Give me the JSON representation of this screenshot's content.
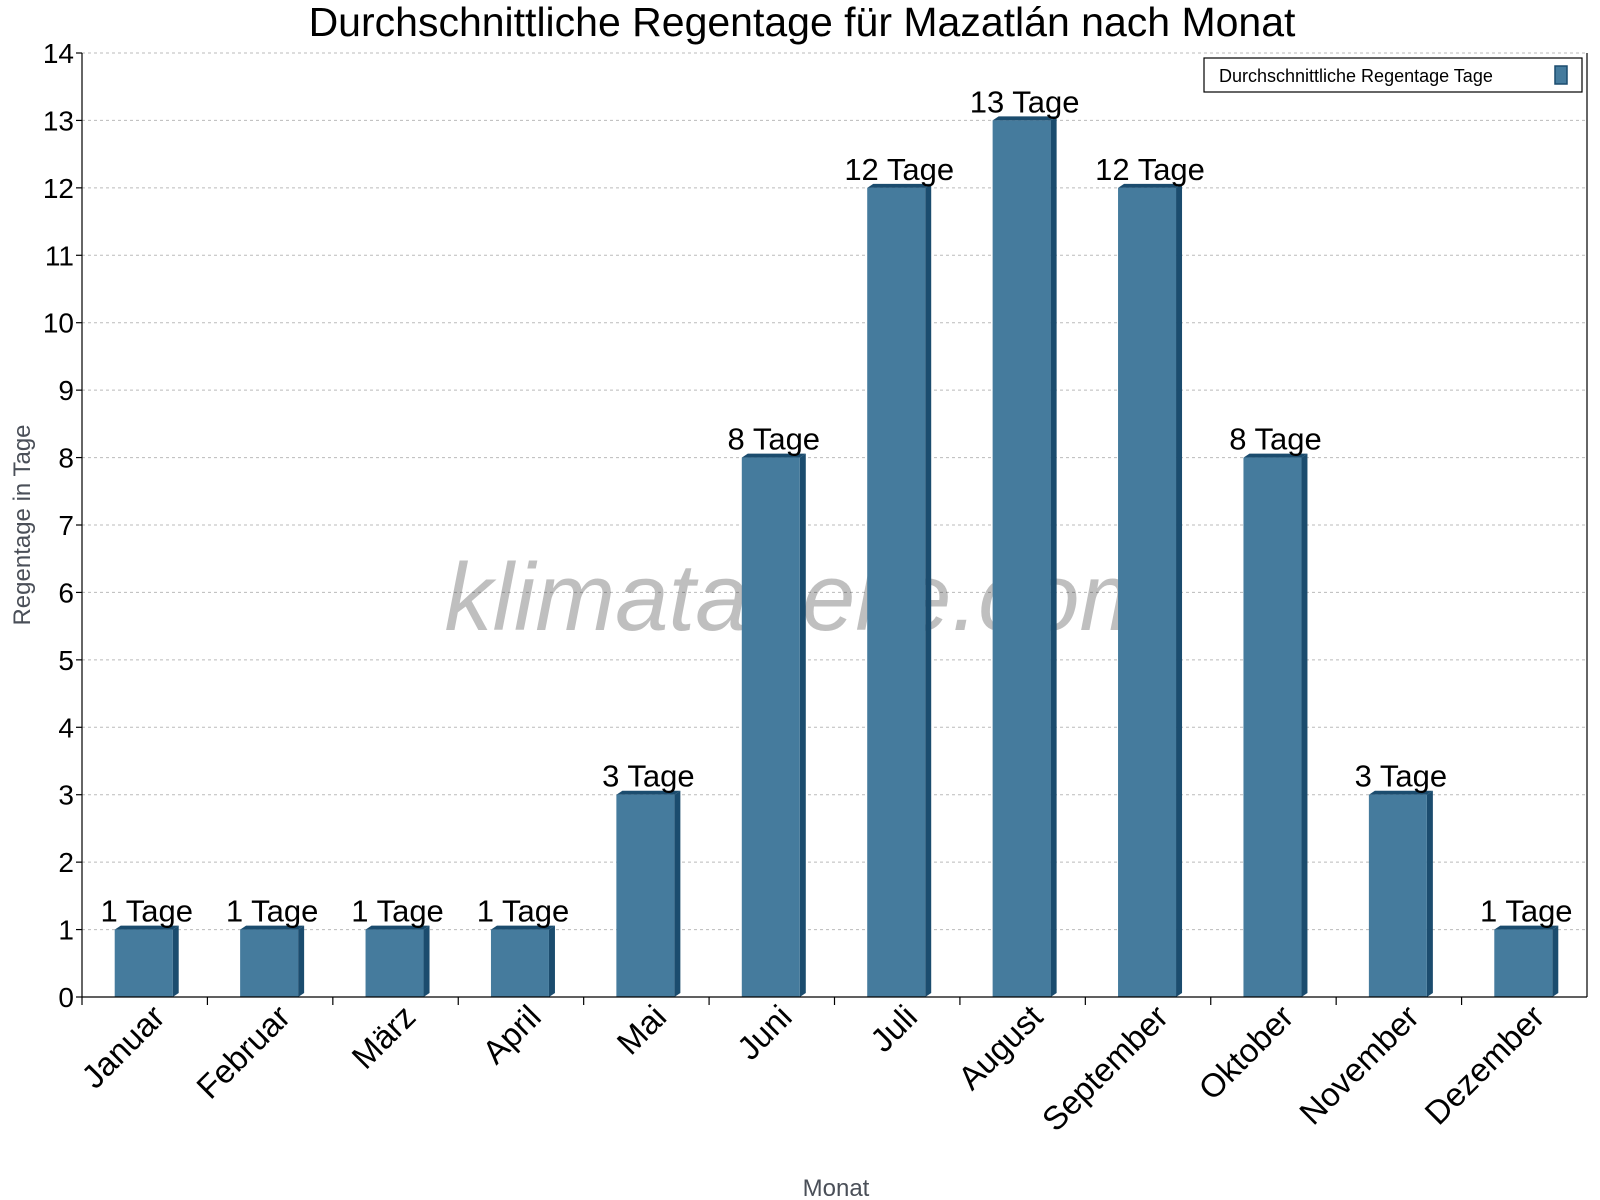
{
  "chart_data": {
    "type": "bar",
    "title": "Durchschnittliche Regentage für Mazatlán nach Monat",
    "xlabel": "Monat",
    "ylabel": "Regentage in Tage",
    "categories": [
      "Januar",
      "Februar",
      "März",
      "April",
      "Mai",
      "Juni",
      "Juli",
      "August",
      "September",
      "Oktober",
      "November",
      "Dezember"
    ],
    "series": [
      {
        "name": "Durchschnittliche Regentage Tage",
        "values": [
          1,
          1,
          1,
          1,
          3,
          8,
          12,
          13,
          12,
          8,
          3,
          1
        ],
        "color": "#457b9d",
        "side_color": "#1b4c6e"
      }
    ],
    "data_labels": [
      "1 Tage",
      "1 Tage",
      "1 Tage",
      "1 Tage",
      "3 Tage",
      "8 Tage",
      "12 Tage",
      "13 Tage",
      "12 Tage",
      "8 Tage",
      "3 Tage",
      "1 Tage"
    ],
    "ylim": [
      0,
      14
    ],
    "yticks": [
      0,
      1,
      2,
      3,
      4,
      5,
      6,
      7,
      8,
      9,
      10,
      11,
      12,
      13,
      14
    ],
    "grid": true,
    "legend_position": "top-right",
    "watermark": "klimatabelle.com"
  }
}
